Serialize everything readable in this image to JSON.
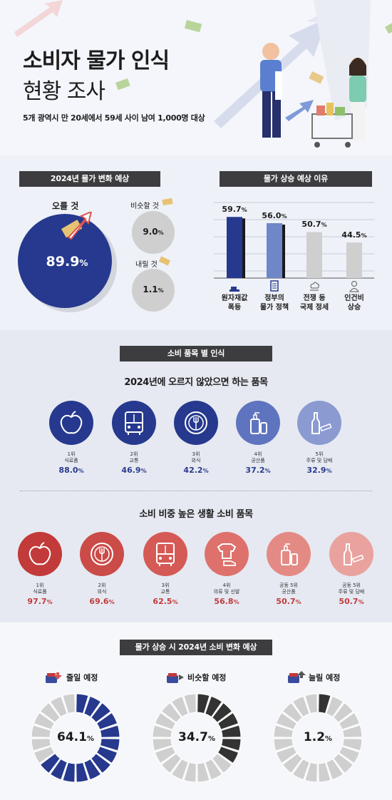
{
  "header": {
    "title_line1": "소비자 물가 인식",
    "title_line2": "현황 조사",
    "subtitle": "5개 광역시 만 20세에서 59세 사이 남여 1,000명 대상"
  },
  "expectation": {
    "tag": "2024년 물가 변화 예상",
    "rise_label": "오를 것",
    "rise_value": "89.9",
    "rise_fraction": 0.899,
    "similar_label": "비슷할 것",
    "similar_value": "9.0",
    "fall_label": "내릴 것",
    "fall_value": "1.1",
    "pct": "%"
  },
  "reasons": {
    "tag": "물가 상승 예상 이유",
    "chart_data": {
      "type": "bar",
      "categories": [
        "원자재값 폭등",
        "정부의 물가 정책",
        "전쟁 등 국제 정세",
        "인건비 상승"
      ],
      "values": [
        59.7,
        56.0,
        50.7,
        44.5
      ],
      "ylim": [
        0,
        70
      ]
    },
    "items": [
      {
        "value": "59.7",
        "line1": "원자재값",
        "line2": "폭등",
        "icon": "materials-icon"
      },
      {
        "value": "56.0",
        "line1": "정부의",
        "line2": "물가 정책",
        "icon": "document-icon"
      },
      {
        "value": "50.7",
        "line1": "전쟁 등",
        "line2": "국제 정세",
        "icon": "explosion-icon"
      },
      {
        "value": "44.5",
        "line1": "인건비",
        "line2": "상승",
        "icon": "person-icon"
      }
    ]
  },
  "items_section": {
    "tag": "소비 품목 별 인식",
    "heading1": "2024년에 오르지 않았으면 하는 품목",
    "heading2": "소비 비중 높은 생활 소비 품목",
    "not_rise": [
      {
        "rank": "1위",
        "name": "식료품",
        "value": "88.0",
        "icon": "apple-icon"
      },
      {
        "rank": "2위",
        "name": "교통",
        "value": "46.9",
        "icon": "bus-icon"
      },
      {
        "rank": "3위",
        "name": "외식",
        "value": "42.2",
        "icon": "plate-icon"
      },
      {
        "rank": "4위",
        "name": "공산품",
        "value": "37.2",
        "icon": "bottles-icon"
      },
      {
        "rank": "5위",
        "name": "주류 및 담배",
        "value": "32.9",
        "icon": "bottle-cigarette-icon"
      }
    ],
    "high_share": [
      {
        "rank": "1위",
        "name": "식료품",
        "value": "97.7",
        "icon": "apple-icon"
      },
      {
        "rank": "2위",
        "name": "외식",
        "value": "69.6",
        "icon": "plate-icon"
      },
      {
        "rank": "3위",
        "name": "교통",
        "value": "62.5",
        "icon": "bus-icon"
      },
      {
        "rank": "4위",
        "name": "의류 및 신발",
        "value": "56.8",
        "icon": "clothes-icon"
      },
      {
        "rank": "공동 5위",
        "name": "공산품",
        "value": "50.7",
        "icon": "bottles-icon"
      },
      {
        "rank": "공동 5위",
        "name": "주류 및 담배",
        "value": "50.7",
        "icon": "bottle-cigarette-icon"
      }
    ]
  },
  "spending": {
    "tag": "물가 상승 시 2024년 소비 변화 예상",
    "groups": [
      {
        "label": "줄일 예정",
        "value": "64.1",
        "fraction": 0.641,
        "color": "#26398e",
        "icon": "wallet-down-icon"
      },
      {
        "label": "비슷할 예정",
        "value": "34.7",
        "fraction": 0.347,
        "color": "#333333",
        "icon": "wallet-flat-icon"
      },
      {
        "label": "늘릴 예정",
        "value": "1.2",
        "fraction": 0.012,
        "color": "#333333",
        "icon": "wallet-up-icon"
      }
    ]
  },
  "colors": {
    "navy": "#26398e",
    "blue_light": "#6f86c9",
    "red": "#c23a3a",
    "red_light": "#e79a96",
    "gray": "#cfcfcf",
    "dark": "#333333"
  }
}
